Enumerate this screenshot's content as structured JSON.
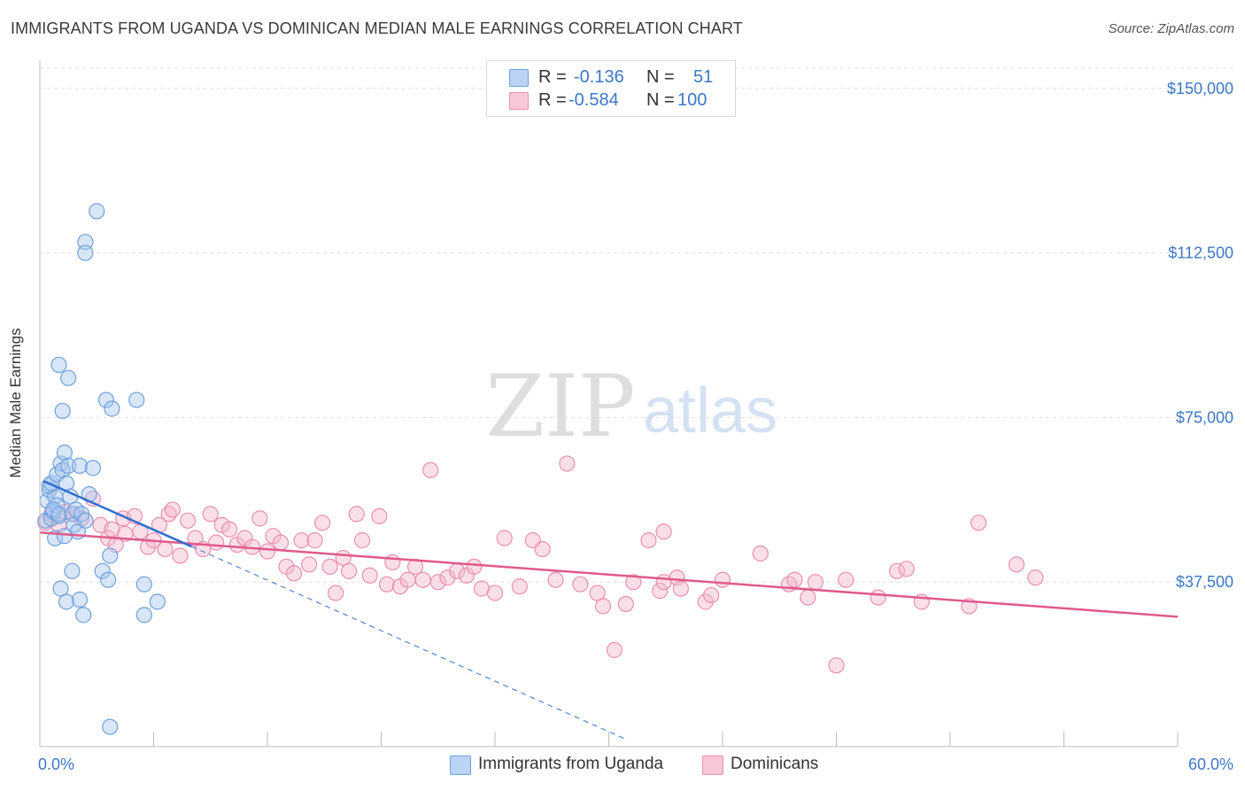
{
  "title": "IMMIGRANTS FROM UGANDA VS DOMINICAN MEDIAN MALE EARNINGS CORRELATION CHART",
  "source": "Source: ZipAtlas.com",
  "watermark": {
    "zip": "ZIP",
    "atlas": "atlas"
  },
  "legend": {
    "rows": [
      {
        "r_label": "R =",
        "r_value": "-0.136",
        "n_label": "N =",
        "n_value": "51"
      },
      {
        "r_label": "R =",
        "r_value": "-0.584",
        "n_label": "N =",
        "n_value": "100"
      }
    ]
  },
  "colors": {
    "uganda_fill": "#a9c8f0",
    "uganda_stroke": "#6fa0dd",
    "uganda_line": "#2f6fd0",
    "dominican_fill": "#f6b8cc",
    "dominican_stroke": "#ea8fae",
    "dominican_line": "#e05a8a",
    "axis_label_blue": "#3d78c8",
    "grid": "#e0e0e0"
  },
  "chart_data": {
    "type": "scatter",
    "title": "IMMIGRANTS FROM UGANDA VS DOMINICAN MEDIAN MALE EARNINGS CORRELATION CHART",
    "xlabel": "",
    "ylabel": "Median Male Earnings",
    "xlim": [
      0,
      60
    ],
    "ylim": [
      0,
      155000
    ],
    "x_tick_labels": [
      "0.0%",
      "60.0%"
    ],
    "y_ticks": [
      37500,
      75000,
      112500,
      150000
    ],
    "y_tick_labels": [
      "$37,500",
      "$75,000",
      "$112,500",
      "$150,000"
    ],
    "grid": true,
    "legend_position": "bottom",
    "series": [
      {
        "name": "Immigrants from Uganda",
        "r": -0.136,
        "n": 51,
        "points": [
          [
            0.3,
            51500
          ],
          [
            0.4,
            56000
          ],
          [
            0.5,
            58500
          ],
          [
            0.6,
            52000
          ],
          [
            0.7,
            53500
          ],
          [
            0.8,
            57000
          ],
          [
            0.9,
            55000
          ],
          [
            1.0,
            52500
          ],
          [
            0.5,
            59500
          ],
          [
            0.6,
            60000
          ],
          [
            0.7,
            54000
          ],
          [
            0.8,
            47500
          ],
          [
            0.9,
            62000
          ],
          [
            1.0,
            53000
          ],
          [
            1.1,
            64500
          ],
          [
            1.2,
            63000
          ],
          [
            1.3,
            67000
          ],
          [
            1.4,
            60000
          ],
          [
            1.5,
            64000
          ],
          [
            1.6,
            57000
          ],
          [
            1.7,
            53000
          ],
          [
            1.8,
            50500
          ],
          [
            1.9,
            54000
          ],
          [
            2.0,
            49000
          ],
          [
            2.1,
            64000
          ],
          [
            2.2,
            53000
          ],
          [
            2.4,
            51500
          ],
          [
            2.6,
            57500
          ],
          [
            2.8,
            63500
          ],
          [
            1.2,
            76500
          ],
          [
            1.5,
            84000
          ],
          [
            1.0,
            87000
          ],
          [
            3.5,
            79000
          ],
          [
            3.8,
            77000
          ],
          [
            5.1,
            79000
          ],
          [
            2.4,
            115000
          ],
          [
            2.4,
            112500
          ],
          [
            3.0,
            122000
          ],
          [
            1.3,
            48000
          ],
          [
            1.1,
            36000
          ],
          [
            1.4,
            33000
          ],
          [
            1.7,
            40000
          ],
          [
            2.1,
            33500
          ],
          [
            2.3,
            30000
          ],
          [
            3.3,
            40000
          ],
          [
            3.6,
            38000
          ],
          [
            3.7,
            43500
          ],
          [
            5.5,
            37000
          ],
          [
            6.2,
            33000
          ],
          [
            5.5,
            30000
          ],
          [
            3.7,
            4500
          ]
        ],
        "trend_solid": [
          [
            0.2,
            60500
          ],
          [
            8.0,
            45600
          ]
        ],
        "trend_dashed": [
          [
            8.0,
            45600
          ],
          [
            31.0,
            1500
          ]
        ]
      },
      {
        "name": "Dominicans",
        "r": -0.584,
        "n": 100,
        "points": [
          [
            0.3,
            51000
          ],
          [
            0.6,
            53000
          ],
          [
            1.0,
            50500
          ],
          [
            1.3,
            53500
          ],
          [
            1.8,
            53000
          ],
          [
            2.2,
            52000
          ],
          [
            2.8,
            56500
          ],
          [
            3.2,
            50500
          ],
          [
            3.6,
            47500
          ],
          [
            3.8,
            49500
          ],
          [
            4.0,
            46000
          ],
          [
            4.4,
            52000
          ],
          [
            4.5,
            48500
          ],
          [
            5.0,
            52500
          ],
          [
            5.3,
            49000
          ],
          [
            5.7,
            45500
          ],
          [
            6.0,
            47000
          ],
          [
            6.3,
            50500
          ],
          [
            6.6,
            45000
          ],
          [
            6.8,
            53000
          ],
          [
            7.0,
            54000
          ],
          [
            7.4,
            43500
          ],
          [
            7.8,
            51500
          ],
          [
            8.2,
            47500
          ],
          [
            8.6,
            45000
          ],
          [
            9.0,
            53000
          ],
          [
            9.3,
            46500
          ],
          [
            9.6,
            50500
          ],
          [
            10.0,
            49500
          ],
          [
            10.4,
            46000
          ],
          [
            10.8,
            47500
          ],
          [
            11.2,
            45500
          ],
          [
            11.6,
            52000
          ],
          [
            12.0,
            44500
          ],
          [
            12.3,
            48000
          ],
          [
            12.7,
            46500
          ],
          [
            13.0,
            41000
          ],
          [
            13.4,
            39500
          ],
          [
            13.8,
            47000
          ],
          [
            14.2,
            41500
          ],
          [
            14.5,
            47000
          ],
          [
            14.9,
            51000
          ],
          [
            15.3,
            41000
          ],
          [
            15.6,
            35000
          ],
          [
            16.0,
            43000
          ],
          [
            16.3,
            40000
          ],
          [
            16.7,
            53000
          ],
          [
            17.0,
            47000
          ],
          [
            17.4,
            39000
          ],
          [
            17.9,
            52500
          ],
          [
            18.3,
            37000
          ],
          [
            18.6,
            42000
          ],
          [
            19.0,
            36500
          ],
          [
            19.4,
            38000
          ],
          [
            19.8,
            41000
          ],
          [
            20.2,
            38000
          ],
          [
            20.6,
            63000
          ],
          [
            21.0,
            37500
          ],
          [
            21.5,
            38500
          ],
          [
            22.0,
            40000
          ],
          [
            22.5,
            39000
          ],
          [
            22.9,
            41000
          ],
          [
            23.3,
            36000
          ],
          [
            24.0,
            35000
          ],
          [
            24.5,
            47500
          ],
          [
            25.3,
            36500
          ],
          [
            26.0,
            47000
          ],
          [
            26.5,
            45000
          ],
          [
            27.2,
            38000
          ],
          [
            27.8,
            64500
          ],
          [
            28.5,
            37000
          ],
          [
            29.4,
            35000
          ],
          [
            29.7,
            32000
          ],
          [
            30.3,
            22000
          ],
          [
            30.9,
            32500
          ],
          [
            31.3,
            37500
          ],
          [
            32.1,
            47000
          ],
          [
            32.7,
            35500
          ],
          [
            32.9,
            37500
          ],
          [
            32.9,
            49000
          ],
          [
            33.6,
            38500
          ],
          [
            33.8,
            36000
          ],
          [
            35.1,
            33000
          ],
          [
            35.4,
            34500
          ],
          [
            36.0,
            38000
          ],
          [
            38.0,
            44000
          ],
          [
            39.5,
            37000
          ],
          [
            39.8,
            38000
          ],
          [
            40.5,
            34000
          ],
          [
            40.9,
            37500
          ],
          [
            42.0,
            18500
          ],
          [
            42.5,
            38000
          ],
          [
            44.2,
            34000
          ],
          [
            45.2,
            40000
          ],
          [
            45.7,
            40500
          ],
          [
            46.5,
            33000
          ],
          [
            49.0,
            32000
          ],
          [
            49.5,
            51000
          ],
          [
            51.5,
            41500
          ],
          [
            52.5,
            38500
          ]
        ],
        "trend_solid": [
          [
            0.0,
            48800
          ],
          [
            60.0,
            29600
          ]
        ]
      }
    ]
  },
  "bottom_legend": {
    "uganda": "Immigrants from Uganda",
    "dominican": "Dominicans"
  }
}
